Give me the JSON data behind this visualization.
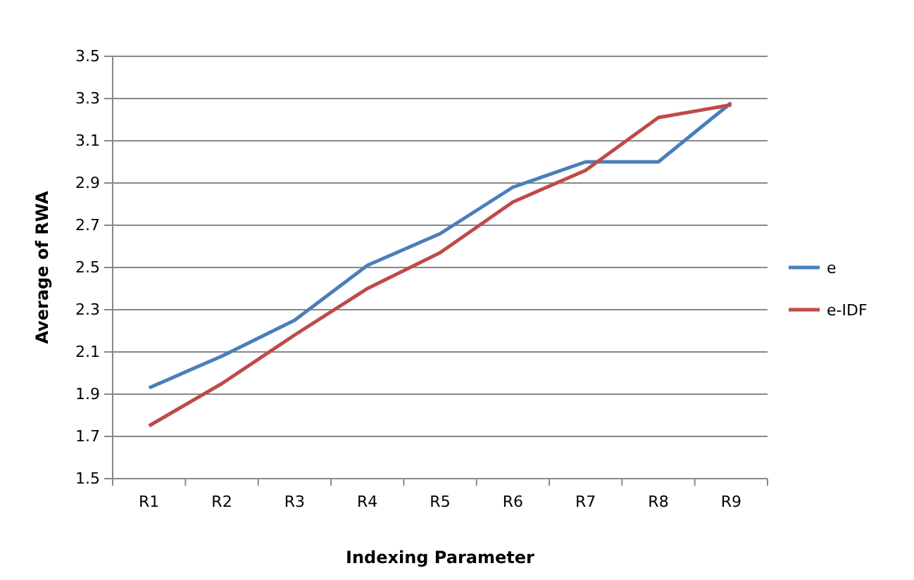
{
  "chart_data": {
    "type": "line",
    "xlabel": "Indexing Parameter",
    "ylabel": "Average of RWA",
    "categories": [
      "R1",
      "R2",
      "R3",
      "R4",
      "R5",
      "R6",
      "R7",
      "R8",
      "R9"
    ],
    "series": [
      {
        "name": "e",
        "color": "#4a7ebb",
        "values": [
          1.93,
          2.08,
          2.25,
          2.51,
          2.66,
          2.88,
          3.0,
          3.0,
          3.28
        ]
      },
      {
        "name": "e-IDF",
        "color": "#be4b48",
        "values": [
          1.75,
          1.95,
          2.18,
          2.4,
          2.57,
          2.81,
          2.96,
          3.21,
          3.27
        ]
      }
    ],
    "ylim": [
      1.5,
      3.5
    ],
    "yticks": [
      {
        "value": 1.5,
        "label": "1.5"
      },
      {
        "value": 1.7,
        "label": "1.7"
      },
      {
        "value": 1.9,
        "label": "1.9"
      },
      {
        "value": 2.1,
        "label": "2.1"
      },
      {
        "value": 2.3,
        "label": "2.3"
      },
      {
        "value": 2.5,
        "label": "2.5"
      },
      {
        "value": 2.7,
        "label": "2.7"
      },
      {
        "value": 2.9,
        "label": "2.9"
      },
      {
        "value": 3.1,
        "label": "3.1"
      },
      {
        "value": 3.3,
        "label": "3.3"
      },
      {
        "value": 3.5,
        "label": "3.5"
      }
    ],
    "grid": "y",
    "legend": "right",
    "marker": "none",
    "line_style": "solid"
  }
}
